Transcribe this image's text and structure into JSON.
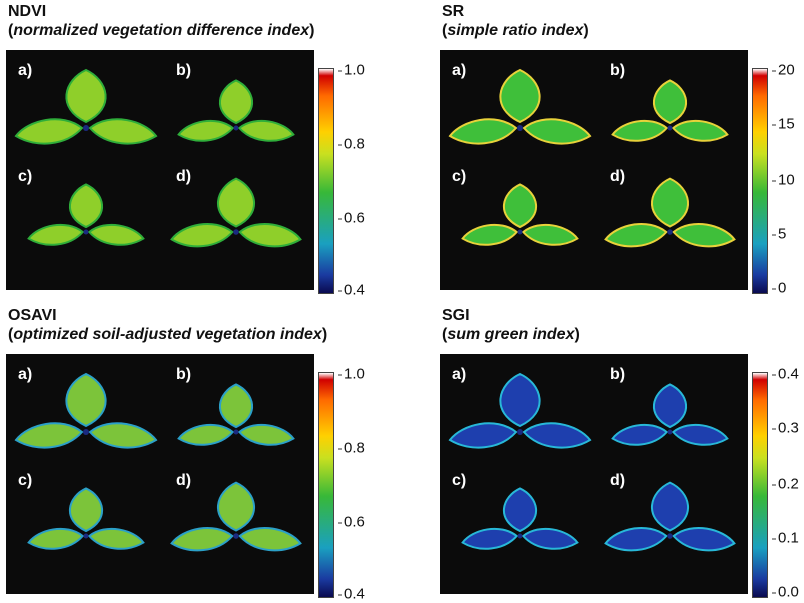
{
  "panels": [
    {
      "id": "ndvi",
      "title": "NDVI",
      "subtitle_open": "(",
      "subtitle_italic": "normalized vegetation difference index",
      "subtitle_close": ")",
      "labels": [
        "a)",
        "b)",
        "c)",
        "d)"
      ],
      "scale_ticks": [
        "1.0",
        "0.8",
        "0.6",
        "0.4"
      ],
      "leaf_color": "#8fcf2a",
      "edge_color": "#2fae3a"
    },
    {
      "id": "sr",
      "title": "SR",
      "subtitle_open": "(",
      "subtitle_italic": "simple ratio index",
      "subtitle_close": ")",
      "labels": [
        "a)",
        "b)",
        "c)",
        "d)"
      ],
      "scale_ticks": [
        "20",
        "15",
        "10",
        "5",
        "0"
      ],
      "leaf_color": "#3fbf3a",
      "edge_color": "#e8d23a"
    },
    {
      "id": "osavi",
      "title": "OSAVI",
      "subtitle_open": "(",
      "subtitle_italic": "optimized soil-adjusted vegetation index",
      "subtitle_close": ")",
      "labels": [
        "a)",
        "b)",
        "c)",
        "d)"
      ],
      "scale_ticks": [
        "1.0",
        "0.8",
        "0.6",
        "0.4"
      ],
      "leaf_color": "#7cc43a",
      "edge_color": "#2ba0c8"
    },
    {
      "id": "sgi",
      "title": "SGI",
      "subtitle_open": "(",
      "subtitle_italic": "sum green index",
      "subtitle_close": ")",
      "labels": [
        "a)",
        "b)",
        "c)",
        "d)"
      ],
      "scale_ticks": [
        "0.4",
        "0.3",
        "0.2",
        "0.1",
        "0.0"
      ],
      "leaf_color": "#1e3fae",
      "edge_color": "#28b8d8"
    }
  ]
}
